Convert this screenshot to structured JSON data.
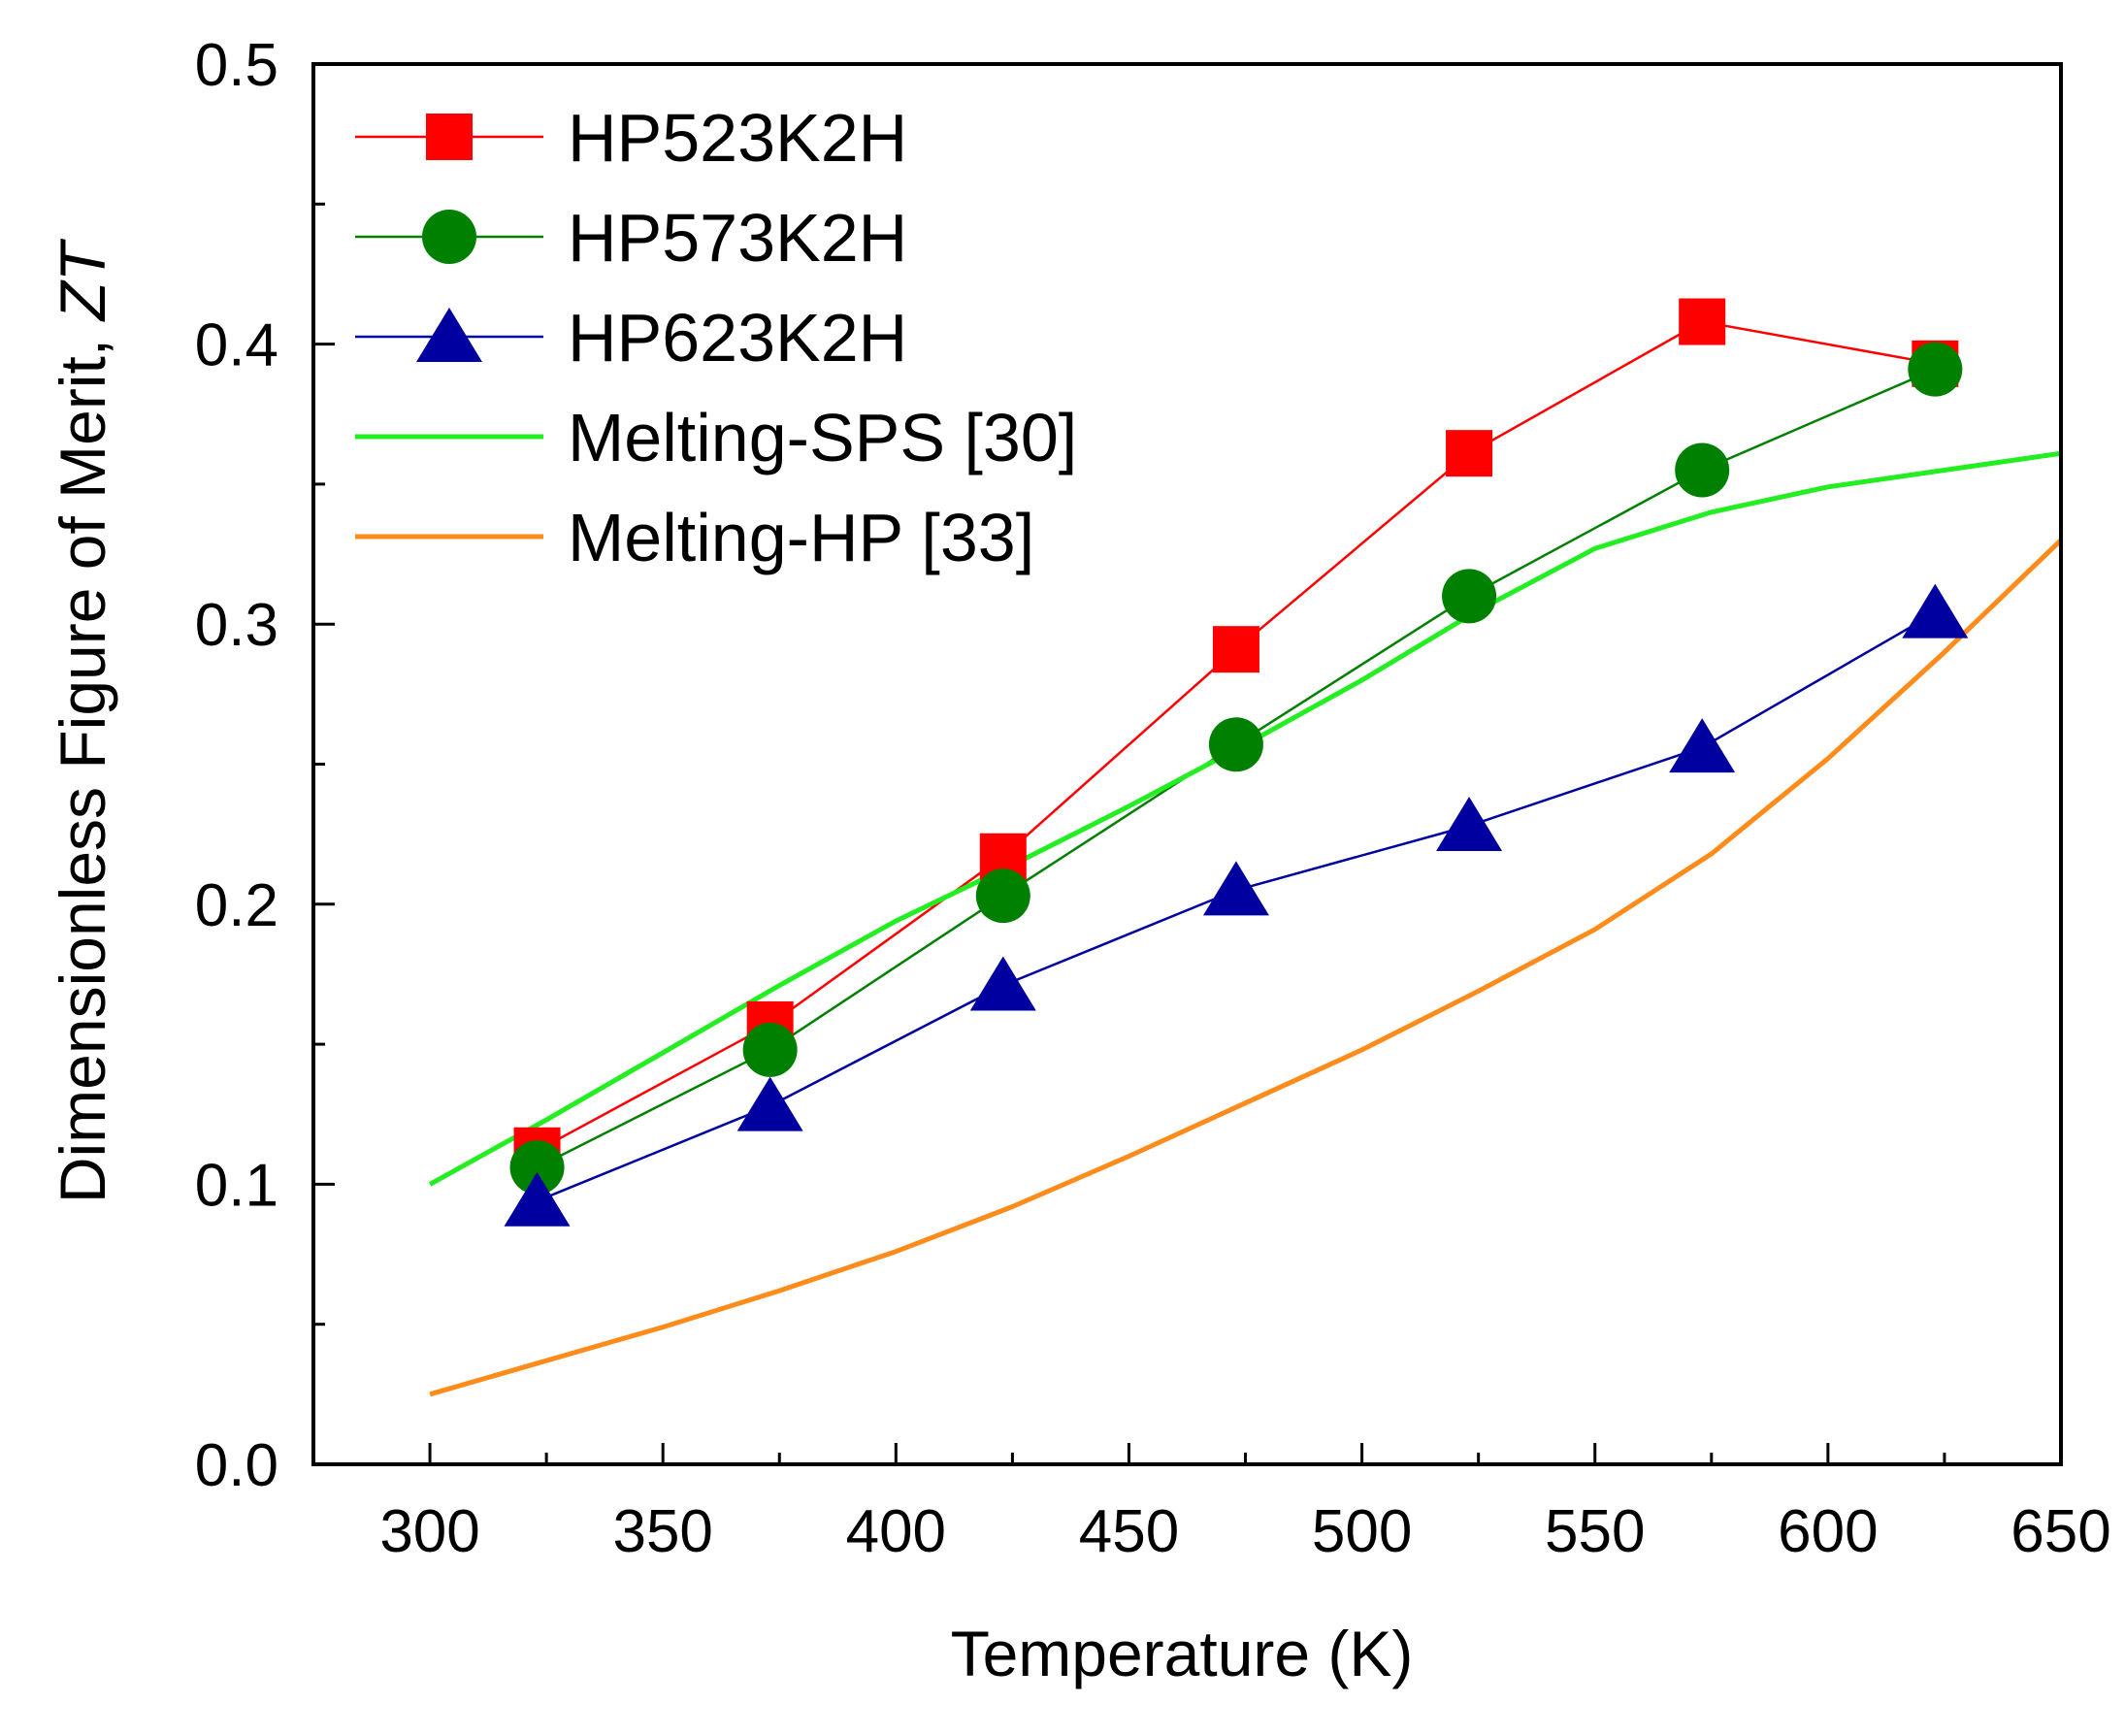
{
  "chart_data": {
    "type": "line",
    "xlabel": "Temperature (K)",
    "ylabel_prefix": "Dimensionless Figure of Merit, ",
    "ylabel_symbol": "ZT",
    "xlim": [
      275,
      650
    ],
    "ylim": [
      0.0,
      0.5
    ],
    "x_ticks": [
      300,
      350,
      400,
      450,
      500,
      550,
      600,
      650
    ],
    "x_tick_labels": [
      "300",
      "350",
      "400",
      "450",
      "500",
      "550",
      "600",
      "650"
    ],
    "y_ticks": [
      0.0,
      0.1,
      0.2,
      0.3,
      0.4,
      0.5
    ],
    "y_tick_labels": [
      "0.0",
      "0.1",
      "0.2",
      "0.3",
      "0.4",
      "0.5"
    ],
    "grid": false,
    "legend_position": "top-left",
    "series": [
      {
        "name": "HP523K2H",
        "color": "#ff0000",
        "marker": "square",
        "x": [
          323,
          373,
          423,
          473,
          523,
          573,
          623
        ],
        "y": [
          0.112,
          0.157,
          0.217,
          0.291,
          0.361,
          0.408,
          0.393
        ]
      },
      {
        "name": "HP573K2H",
        "color": "#008000",
        "marker": "circle",
        "x": [
          323,
          373,
          423,
          473,
          523,
          573,
          623
        ],
        "y": [
          0.106,
          0.148,
          0.203,
          0.257,
          0.31,
          0.355,
          0.391
        ]
      },
      {
        "name": "HP623K2H",
        "color": "#0000a0",
        "marker": "triangle",
        "x": [
          323,
          373,
          423,
          473,
          523,
          573,
          623
        ],
        "y": [
          0.094,
          0.128,
          0.171,
          0.205,
          0.228,
          0.256,
          0.304
        ]
      },
      {
        "name": "Melting-SPS [30]",
        "color": "#22ee22",
        "marker": "none",
        "x": [
          300,
          325,
          350,
          375,
          400,
          425,
          450,
          475,
          500,
          525,
          550,
          575,
          600,
          625,
          650
        ],
        "y": [
          0.1,
          0.123,
          0.147,
          0.171,
          0.194,
          0.214,
          0.235,
          0.257,
          0.28,
          0.305,
          0.327,
          0.34,
          0.349,
          0.355,
          0.361
        ]
      },
      {
        "name": "Melting-HP [33]",
        "color": "#ff8c1a",
        "marker": "none",
        "x": [
          300,
          325,
          350,
          375,
          400,
          425,
          450,
          475,
          500,
          525,
          550,
          575,
          600,
          625,
          650
        ],
        "y": [
          0.025,
          0.037,
          0.049,
          0.062,
          0.076,
          0.092,
          0.11,
          0.129,
          0.148,
          0.169,
          0.191,
          0.218,
          0.252,
          0.29,
          0.33
        ]
      }
    ]
  }
}
